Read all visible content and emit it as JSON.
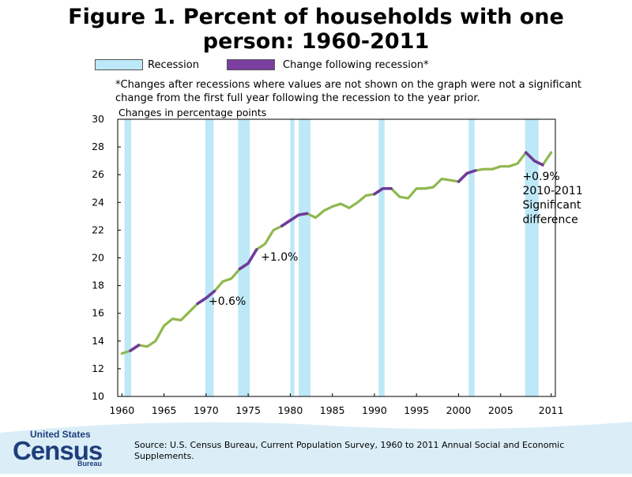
{
  "title_line1": "Figure 1. Percent of households with one",
  "title_line2": "person: 1960-2011",
  "legend": {
    "recession_label": "Recession",
    "change_label": "Change following recession*"
  },
  "note": "*Changes after recessions where values are not shown on the graph were not a significant change from the first full year following the recession to the year prior.",
  "footer": {
    "source": "Source: U.S. Census Bureau, Current Population Survey, 1960 to 2011 Annual Social and Economic Supplements.",
    "logo_united_states": "United States",
    "logo_census": "Census",
    "logo_bureau": "Bureau"
  },
  "colors": {
    "line": "#8fb84e",
    "change": "#6f3a9a",
    "recession": "#bde8f7",
    "footer_bg": "#dbeef8"
  },
  "chart_data": {
    "type": "line",
    "ylabel": "Changes in percentage points",
    "xlim": [
      1959.5,
      2011.5
    ],
    "ylim": [
      10,
      30
    ],
    "yticks": [
      10,
      12,
      14,
      16,
      18,
      20,
      22,
      24,
      26,
      28,
      30
    ],
    "xticks": [
      1960,
      1965,
      1970,
      1975,
      1980,
      1985,
      1990,
      1995,
      2000,
      2005,
      2011
    ],
    "grid": false,
    "recessions": [
      [
        1960.3,
        1961.1
      ],
      [
        1969.9,
        1970.9
      ],
      [
        1973.8,
        1975.2
      ],
      [
        1980.0,
        1980.5
      ],
      [
        1981.0,
        1982.4
      ],
      [
        1990.5,
        1991.2
      ],
      [
        2001.2,
        2001.9
      ],
      [
        2007.9,
        2009.5
      ]
    ],
    "x": [
      1960,
      1961,
      1962,
      1963,
      1964,
      1965,
      1966,
      1967,
      1968,
      1969,
      1970,
      1971,
      1972,
      1973,
      1974,
      1975,
      1976,
      1977,
      1978,
      1979,
      1980,
      1981,
      1982,
      1983,
      1984,
      1985,
      1986,
      1987,
      1988,
      1989,
      1990,
      1991,
      1992,
      1993,
      1994,
      1995,
      1996,
      1997,
      1998,
      1999,
      2000,
      2001,
      2002,
      2003,
      2004,
      2005,
      2006,
      2007,
      2008,
      2009,
      2010,
      2011
    ],
    "y": [
      13.1,
      13.3,
      13.7,
      13.6,
      14.0,
      15.1,
      15.6,
      15.5,
      16.1,
      16.7,
      17.1,
      17.6,
      18.3,
      18.5,
      19.2,
      19.6,
      20.6,
      21.0,
      22.0,
      22.3,
      22.7,
      23.1,
      23.2,
      22.9,
      23.4,
      23.7,
      23.9,
      23.6,
      24.0,
      24.5,
      24.6,
      25.0,
      25.0,
      24.4,
      24.3,
      25.0,
      25.0,
      25.1,
      25.7,
      25.6,
      25.5,
      26.1,
      26.3,
      26.4,
      26.4,
      26.6,
      26.6,
      26.8,
      27.6,
      27.0,
      26.7,
      27.6
    ],
    "change_segments": [
      [
        1961,
        1962
      ],
      [
        1969,
        1971
      ],
      [
        1974,
        1976
      ],
      [
        1979,
        1982
      ],
      [
        1990,
        1992
      ],
      [
        2000,
        2002
      ],
      [
        2008,
        2010
      ]
    ],
    "annotations": [
      {
        "text": "+0.6%",
        "x": 1970.3,
        "y": 16.6
      },
      {
        "text": "+1.0%",
        "x": 1976.5,
        "y": 19.8
      },
      {
        "text": "+0.9%",
        "x": 2007.6,
        "y": 25.6
      },
      {
        "text": "2010-2011",
        "x": 2007.6,
        "y": 24.6
      },
      {
        "text": "Significant",
        "x": 2007.6,
        "y": 23.55
      },
      {
        "text": "difference",
        "x": 2007.6,
        "y": 22.5
      }
    ]
  }
}
